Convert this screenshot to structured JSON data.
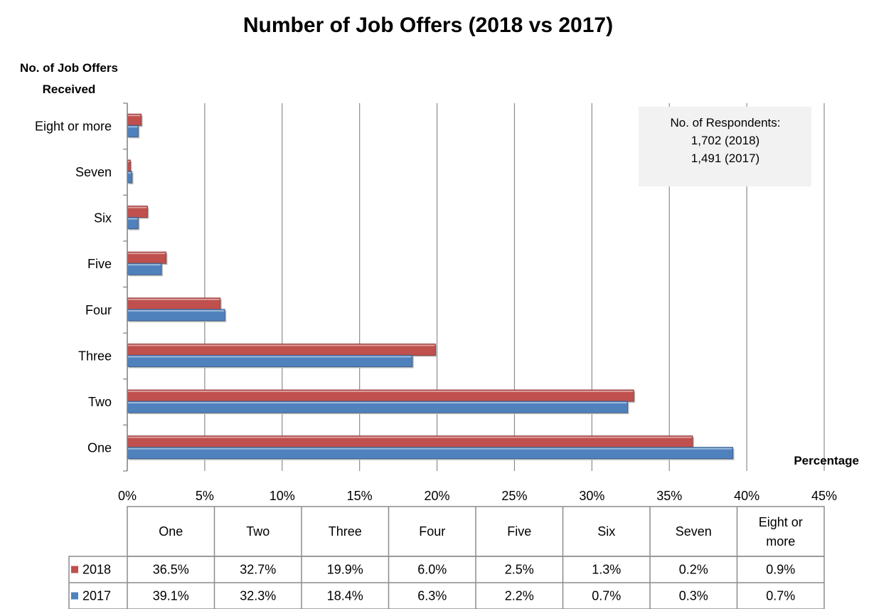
{
  "chart_data": {
    "type": "bar",
    "orientation": "horizontal",
    "title": "Number of Job Offers (2018 vs 2017)",
    "ylabel": "No. of Job Offers Received",
    "xlabel": "Percentage",
    "categories": [
      "One",
      "Two",
      "Three",
      "Four",
      "Five",
      "Six",
      "Seven",
      "Eight or more"
    ],
    "table_headers": [
      "One",
      "Two",
      "Three",
      "Four",
      "Five",
      "Six",
      "Seven",
      "Eight or more"
    ],
    "x_ticks": [
      "0%",
      "5%",
      "10%",
      "15%",
      "20%",
      "25%",
      "30%",
      "35%",
      "40%",
      "45%"
    ],
    "xlim": [
      0,
      45
    ],
    "grid": true,
    "series": [
      {
        "name": "2018",
        "color": "#c0504d",
        "values": [
          36.5,
          32.7,
          19.9,
          6.0,
          2.5,
          1.3,
          0.2,
          0.9
        ],
        "labels": [
          "36.5%",
          "32.7%",
          "19.9%",
          "6.0%",
          "2.5%",
          "1.3%",
          "0.2%",
          "0.9%"
        ]
      },
      {
        "name": "2017",
        "color": "#4f81bd",
        "values": [
          39.1,
          32.3,
          18.4,
          6.3,
          2.2,
          0.7,
          0.3,
          0.7
        ],
        "labels": [
          "39.1%",
          "32.3%",
          "18.4%",
          "6.3%",
          "2.2%",
          "0.7%",
          "0.3%",
          "0.7%"
        ]
      }
    ],
    "annotation": [
      "No. of Respondents:",
      "1,702 (2018)",
      "1,491 (2017)"
    ]
  }
}
